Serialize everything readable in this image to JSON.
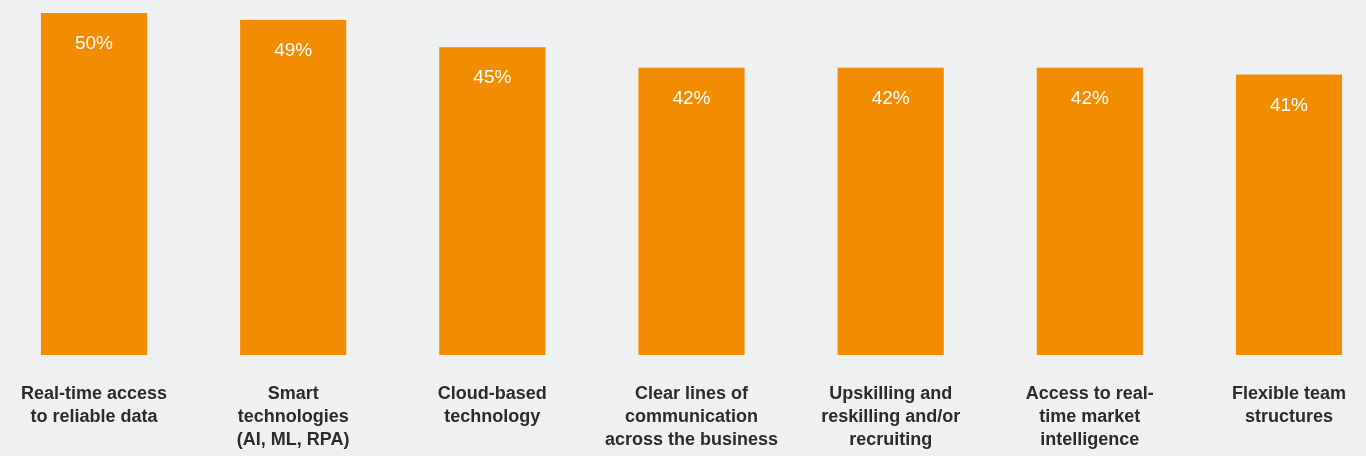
{
  "chart_data": {
    "type": "bar",
    "categories": [
      "Real-time access\nto reliable data",
      "Smart\ntechnologies\n(AI, ML, RPA)",
      "Cloud-based\ntechnology",
      "Clear lines of\ncommunication\nacross the business",
      "Upskilling and\nreskilling and/or\nrecruiting",
      "Access to real-\ntime market\nintelligence",
      "Flexible team\nstructures"
    ],
    "values": [
      50,
      49,
      45,
      42,
      42,
      42,
      41
    ],
    "value_labels": [
      "50%",
      "49%",
      "45%",
      "42%",
      "42%",
      "42%",
      "41%"
    ],
    "color": "#f28c00"
  }
}
